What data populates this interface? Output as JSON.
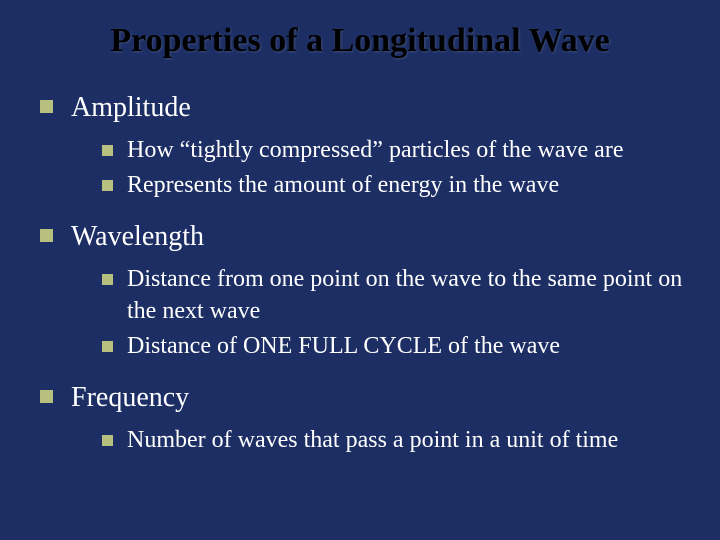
{
  "colors": {
    "background": "#1c2e63",
    "title": "#000000",
    "body_text": "#ffffff",
    "bullet": "#b8c080"
  },
  "typography": {
    "family": "Georgia, Times New Roman, serif",
    "title_fontsize": 34,
    "level1_fontsize": 28,
    "level2_fontsize": 24
  },
  "slide": {
    "title": "Properties of a Longitudinal Wave",
    "items": [
      {
        "label": "Amplitude",
        "sub": [
          "How “tightly compressed” particles of the wave are",
          "Represents the amount of energy in the wave"
        ]
      },
      {
        "label": "Wavelength",
        "sub": [
          "Distance from one point on the wave to the same point on the next wave",
          "Distance of ONE FULL CYCLE of the wave"
        ]
      },
      {
        "label": "Frequency",
        "sub": [
          "Number of waves that pass a point in a unit of time"
        ]
      }
    ]
  }
}
